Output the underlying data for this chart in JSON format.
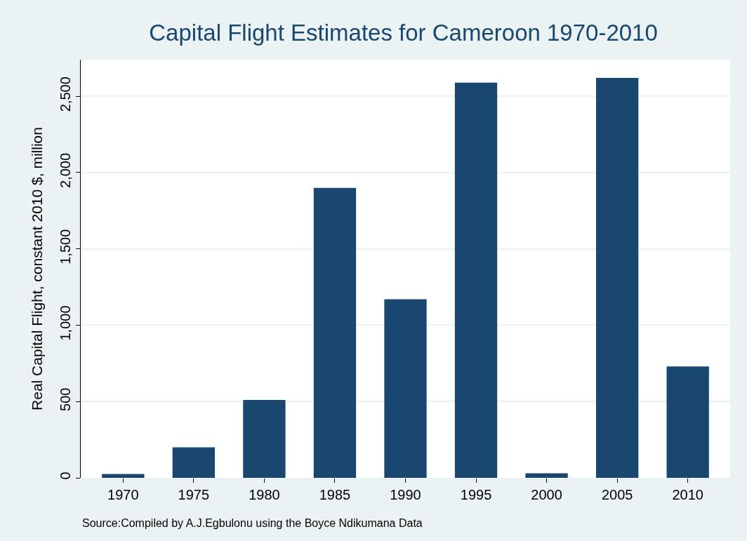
{
  "chart_data": {
    "type": "bar",
    "title": "Capital Flight Estimates for Cameroon 1970-2010",
    "ylabel": "Real Capital Flight, constant 2010 $, million",
    "categories": [
      "1970",
      "1975",
      "1980",
      "1985",
      "1990",
      "1995",
      "2000",
      "2005",
      "2010"
    ],
    "series": [
      {
        "color": "#1a476f",
        "values": [
          25,
          200,
          510,
          1900,
          1170,
          2590,
          30,
          2620,
          730
        ]
      }
    ],
    "ylim": [
      0,
      2740
    ],
    "yticks": [
      0,
      {
        "value": 500,
        "label": "500"
      },
      {
        "value": 1000,
        "label": "1,000"
      },
      {
        "value": 1500,
        "label": "1,500"
      },
      {
        "value": 2000,
        "label": "2,000"
      },
      {
        "value": 2500,
        "label": "2,500"
      }
    ],
    "grid": "y",
    "annotations": [
      "Source:Compiled by A.J.Egbulonu using the Boyce Ndikumana Data"
    ]
  }
}
